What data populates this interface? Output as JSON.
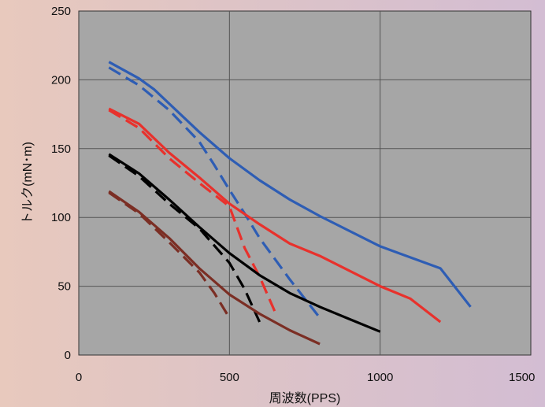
{
  "chart_data": {
    "type": "line",
    "title": "",
    "xlabel": "周波数(PPS)",
    "ylabel": "トルク(mN･m)",
    "xlim": [
      0,
      1500
    ],
    "ylim": [
      0,
      250
    ],
    "x_ticks": [
      "0",
      "500",
      "1000",
      "1500"
    ],
    "y_ticks": [
      "0",
      "50",
      "100",
      "150",
      "200",
      "250"
    ],
    "grid": true,
    "plot_background": "#a6a6a6",
    "series": [
      {
        "color": "#2e5db4",
        "dashed": false,
        "points": [
          [
            100,
            213
          ],
          [
            200,
            201
          ],
          [
            250,
            193
          ],
          [
            400,
            162
          ],
          [
            500,
            143
          ],
          [
            600,
            127
          ],
          [
            700,
            113
          ],
          [
            800,
            101
          ],
          [
            1000,
            79
          ],
          [
            1200,
            63
          ],
          [
            1300,
            35
          ]
        ]
      },
      {
        "color": "#2e5db4",
        "dashed": true,
        "points": [
          [
            100,
            209
          ],
          [
            200,
            196
          ],
          [
            300,
            178
          ],
          [
            400,
            155
          ],
          [
            450,
            138
          ],
          [
            500,
            120
          ],
          [
            550,
            103
          ],
          [
            600,
            85
          ],
          [
            700,
            55
          ],
          [
            800,
            27
          ]
        ]
      },
      {
        "color": "#e8312c",
        "dashed": false,
        "points": [
          [
            100,
            179
          ],
          [
            200,
            168
          ],
          [
            300,
            147
          ],
          [
            400,
            129
          ],
          [
            500,
            110
          ],
          [
            600,
            95
          ],
          [
            700,
            81
          ],
          [
            800,
            72
          ],
          [
            1000,
            50
          ],
          [
            1100,
            41
          ],
          [
            1200,
            24
          ]
        ]
      },
      {
        "color": "#e8312c",
        "dashed": true,
        "points": [
          [
            100,
            178
          ],
          [
            200,
            165
          ],
          [
            300,
            143
          ],
          [
            400,
            125
          ],
          [
            500,
            108
          ],
          [
            550,
            78
          ],
          [
            600,
            57
          ],
          [
            650,
            32
          ]
        ]
      },
      {
        "color": "#000000",
        "dashed": false,
        "points": [
          [
            100,
            146
          ],
          [
            200,
            132
          ],
          [
            300,
            113
          ],
          [
            400,
            93
          ],
          [
            500,
            74
          ],
          [
            600,
            58
          ],
          [
            700,
            45
          ],
          [
            800,
            35
          ],
          [
            900,
            26
          ],
          [
            1000,
            17
          ]
        ]
      },
      {
        "color": "#000000",
        "dashed": true,
        "points": [
          [
            100,
            145
          ],
          [
            200,
            130
          ],
          [
            300,
            110
          ],
          [
            400,
            92
          ],
          [
            500,
            67
          ],
          [
            550,
            48
          ],
          [
            600,
            24
          ]
        ]
      },
      {
        "color": "#7b2e24",
        "dashed": false,
        "points": [
          [
            100,
            119
          ],
          [
            200,
            104
          ],
          [
            300,
            85
          ],
          [
            400,
            63
          ],
          [
            500,
            44
          ],
          [
            600,
            30
          ],
          [
            700,
            18
          ],
          [
            800,
            8
          ]
        ]
      },
      {
        "color": "#7b2e24",
        "dashed": true,
        "points": [
          [
            100,
            118
          ],
          [
            200,
            103
          ],
          [
            300,
            82
          ],
          [
            400,
            60
          ],
          [
            450,
            45
          ],
          [
            500,
            27
          ]
        ]
      }
    ]
  }
}
